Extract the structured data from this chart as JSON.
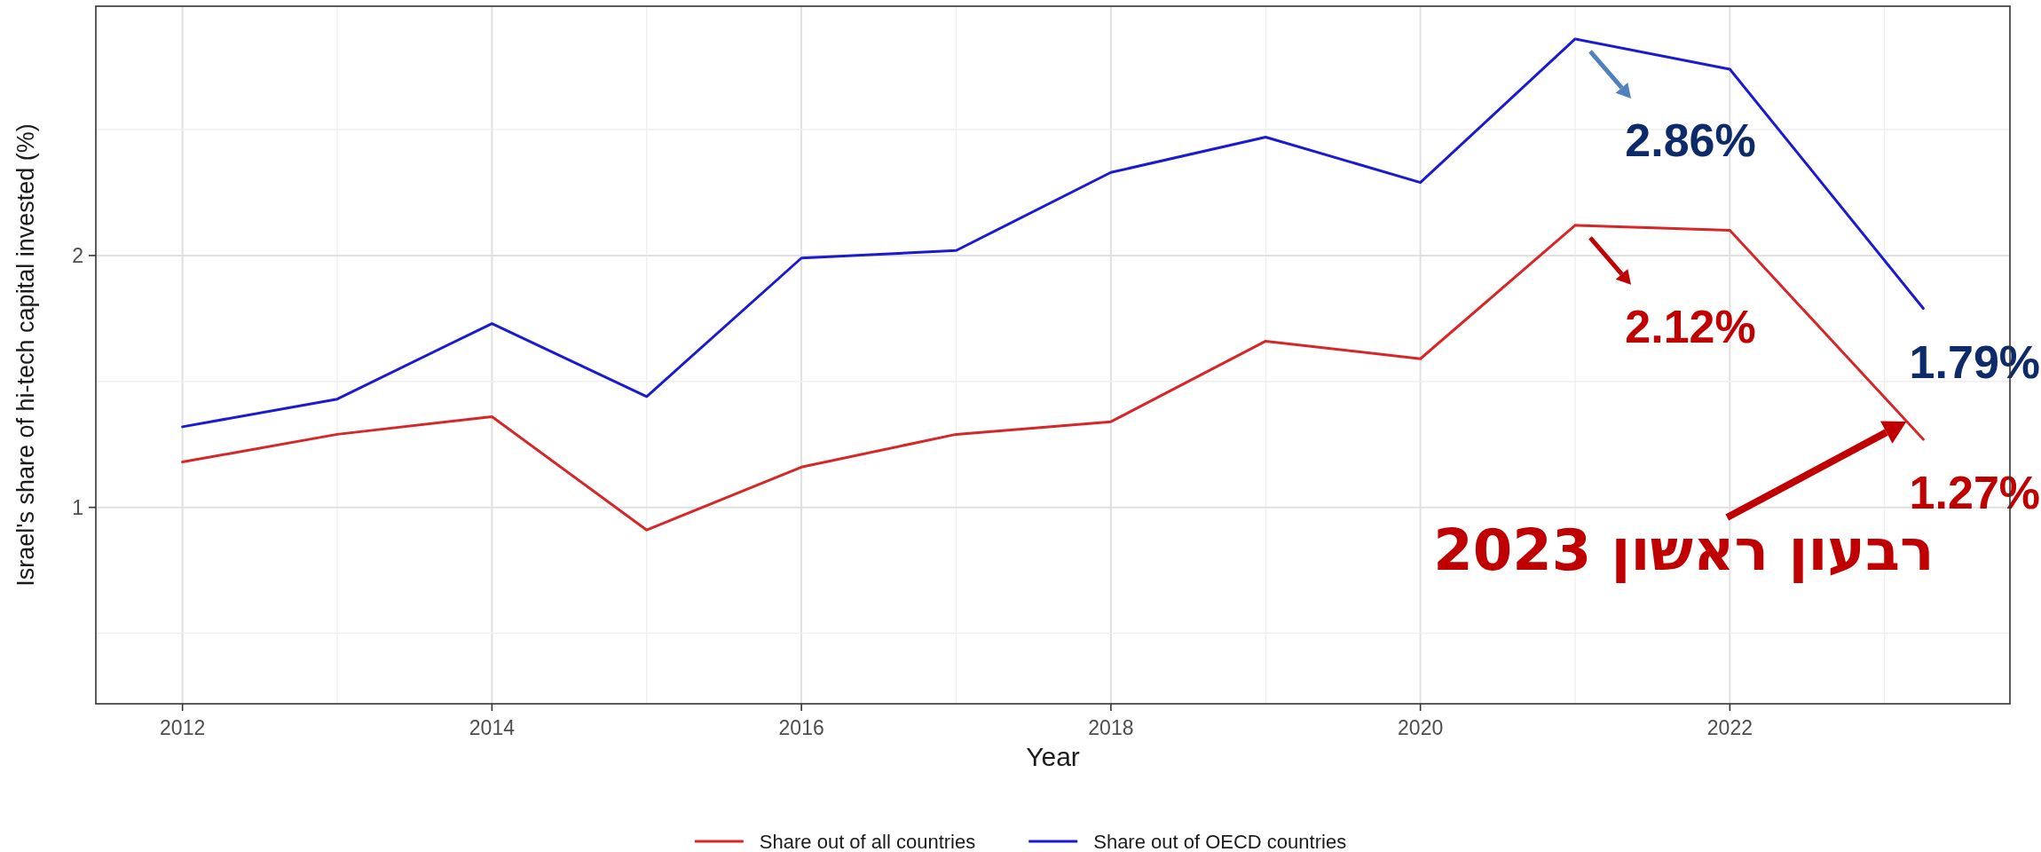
{
  "chart_data": {
    "type": "line",
    "xlabel": "Year",
    "ylabel": "Israel's share of hi-tech capital invested (%)",
    "series": [
      {
        "name": "Share out of all countries",
        "color": "#d62728",
        "x": [
          2012,
          2013,
          2014,
          2015,
          2016,
          2017,
          2018,
          2019,
          2020,
          2021,
          2022,
          2023.25
        ],
        "values": [
          1.18,
          1.29,
          1.36,
          0.91,
          1.16,
          1.29,
          1.34,
          1.66,
          1.59,
          2.12,
          2.1,
          1.27
        ],
        "value_labels": [
          null,
          null,
          null,
          null,
          null,
          null,
          null,
          null,
          null,
          "2.12%",
          null,
          "1.27%"
        ]
      },
      {
        "name": "Share out of OECD countries",
        "color": "#1a1ad0",
        "x": [
          2012,
          2013,
          2014,
          2015,
          2016,
          2017,
          2018,
          2019,
          2020,
          2021,
          2022,
          2023.25
        ],
        "values": [
          1.32,
          1.43,
          1.73,
          1.44,
          1.99,
          2.02,
          2.33,
          2.47,
          2.29,
          2.86,
          2.74,
          1.79
        ],
        "value_labels": [
          null,
          null,
          null,
          null,
          null,
          null,
          null,
          null,
          null,
          "2.86%",
          null,
          "1.79%"
        ]
      }
    ],
    "xlim": [
      2011.44,
      2023.81
    ],
    "xticks": [
      2012,
      2014,
      2016,
      2018,
      2020,
      2022
    ],
    "ylim": [
      0.22,
      2.99
    ],
    "yticks": [
      1,
      2
    ],
    "grid": true,
    "legend": "bottom",
    "marker": "none",
    "line_style": "solid",
    "annotations": [
      {
        "text": "רבעון ראשון 2023",
        "x": 2023.25,
        "y": 1.27
      }
    ]
  }
}
